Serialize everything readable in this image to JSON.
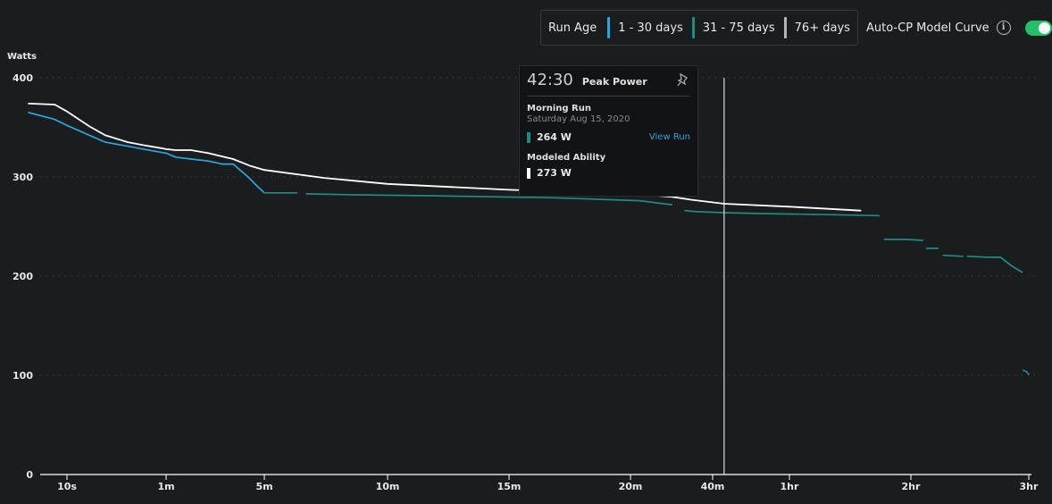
{
  "legend": {
    "title": "Run Age",
    "items": [
      {
        "label": "1 - 30 days",
        "color": "#26a9de"
      },
      {
        "label": "31 - 75 days",
        "color": "#1e8b84"
      },
      {
        "label": "76+ days",
        "color": "#b5b5b5"
      }
    ]
  },
  "toggle": {
    "label": "Auto-CP Model Curve",
    "info_icon": "info-icon",
    "enabled": true,
    "color": "#22c06a"
  },
  "tooltip": {
    "duration": "42:30",
    "title": "Peak Power",
    "pin_icon": "pin-icon",
    "run_name": "Morning Run",
    "run_date": "Saturday Aug 15, 2020",
    "run_value": "264 W",
    "run_color": "#1e8b84",
    "view_link": "View Run",
    "model_label": "Modeled Ability",
    "model_value": "273 W",
    "model_color": "#ffffff"
  },
  "chart_data": {
    "type": "line",
    "ylabel": "Watts",
    "ylim": [
      0,
      400
    ],
    "yticks": [
      0,
      100,
      200,
      300,
      400
    ],
    "grid": "horizontal dotted",
    "xscale": "log",
    "xticks": [
      {
        "label": "10s",
        "sec": 10
      },
      {
        "label": "1m",
        "sec": 60
      },
      {
        "label": "5m",
        "sec": 300
      },
      {
        "label": "10m",
        "sec": 600
      },
      {
        "label": "15m",
        "sec": 900
      },
      {
        "label": "20m",
        "sec": 1200
      },
      {
        "label": "40m",
        "sec": 2400
      },
      {
        "label": "1hr",
        "sec": 3600
      },
      {
        "label": "2hr",
        "sec": 7200
      },
      {
        "label": "3hr",
        "sec": 10800
      }
    ],
    "cursor_sec": 2550,
    "series": [
      {
        "name": "1 - 30 days",
        "color": "#26a9de",
        "segments": [
          [
            [
              5,
              365
            ],
            [
              8,
              358
            ],
            [
              10,
              352
            ],
            [
              15,
              342
            ],
            [
              20,
              335
            ],
            [
              30,
              331
            ],
            [
              40,
              328
            ],
            [
              60,
              324
            ],
            [
              70,
              320
            ],
            [
              90,
              318
            ],
            [
              120,
              316
            ],
            [
              150,
              313
            ],
            [
              180,
              313
            ],
            [
              230,
              300
            ],
            [
              270,
              290
            ],
            [
              300,
              284
            ]
          ]
        ]
      },
      {
        "name": "31 - 75 days",
        "color": "#1e8b84",
        "segments": [
          [
            [
              300,
              284
            ],
            [
              360,
              284
            ]
          ],
          [
            [
              380,
              283
            ],
            [
              500,
              282
            ],
            [
              700,
              281
            ],
            [
              1000,
              279
            ],
            [
              1300,
              276
            ],
            [
              1700,
              272
            ]
          ],
          [
            [
              1900,
              266
            ],
            [
              2100,
              265
            ],
            [
              2550,
              264
            ],
            [
              3200,
              263
            ],
            [
              4500,
              262
            ],
            [
              6000,
              261
            ]
          ],
          [
            [
              6200,
              237
            ],
            [
              7000,
              237
            ],
            [
              7500,
              236
            ]
          ],
          [
            [
              7600,
              228
            ],
            [
              7900,
              228
            ]
          ],
          [
            [
              8050,
              221
            ],
            [
              8600,
              220
            ]
          ],
          [
            [
              8750,
              220
            ],
            [
              9400,
              219
            ],
            [
              9800,
              219
            ],
            [
              10200,
              210
            ],
            [
              10550,
              204
            ]
          ],
          [
            [
              10600,
              105
            ],
            [
              10700,
              104
            ],
            [
              10800,
              101
            ]
          ]
        ]
      },
      {
        "name": "Auto-CP Model Curve",
        "color": "#ffffff",
        "segments": [
          [
            [
              5,
              374
            ],
            [
              8,
              373
            ],
            [
              10,
              366
            ],
            [
              15,
              351
            ],
            [
              20,
              342
            ],
            [
              30,
              335
            ],
            [
              40,
              332
            ],
            [
              55,
              329
            ],
            [
              60,
              328
            ],
            [
              70,
              327
            ],
            [
              90,
              327
            ],
            [
              120,
              324
            ],
            [
              180,
              318
            ],
            [
              240,
              311
            ],
            [
              300,
              307
            ],
            [
              420,
              299
            ],
            [
              600,
              293
            ],
            [
              900,
              287
            ],
            [
              1200,
              283
            ],
            [
              1700,
              280
            ],
            [
              2000,
              277
            ],
            [
              2550,
              273
            ],
            [
              3600,
              270
            ],
            [
              5400,
              266
            ]
          ]
        ]
      }
    ]
  }
}
